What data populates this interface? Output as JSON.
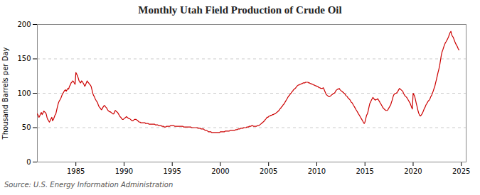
{
  "chart_data": {
    "type": "line",
    "title": "Monthly Utah Field Production of Crude Oil",
    "ylabel": "Thousand Barrels per Day",
    "annotations": [
      "Source: U.S. Energy Information Administration"
    ],
    "color": "#cc0000",
    "grid": true,
    "xlim": [
      1981.0,
      2025.5
    ],
    "xticks": [
      1985,
      1990,
      1995,
      2000,
      2005,
      2010,
      2015,
      2020,
      2025
    ],
    "ylim": [
      0,
      200
    ],
    "yticks": [
      0,
      50,
      100,
      150,
      200
    ],
    "x": [
      1981.0,
      1981.08,
      1981.17,
      1981.25,
      1981.33,
      1981.42,
      1981.5,
      1981.58,
      1981.67,
      1981.75,
      1981.83,
      1981.92,
      1982.0,
      1982.08,
      1982.17,
      1982.25,
      1982.33,
      1982.42,
      1982.5,
      1982.58,
      1982.67,
      1982.75,
      1982.83,
      1982.92,
      1983.0,
      1983.08,
      1983.17,
      1983.25,
      1983.33,
      1983.42,
      1983.5,
      1983.58,
      1983.67,
      1983.75,
      1983.83,
      1983.92,
      1984.0,
      1984.08,
      1984.17,
      1984.25,
      1984.33,
      1984.42,
      1984.5,
      1984.58,
      1984.67,
      1984.75,
      1984.83,
      1984.92,
      1985.0,
      1985.08,
      1985.17,
      1985.25,
      1985.33,
      1985.42,
      1985.5,
      1985.58,
      1985.67,
      1985.75,
      1985.83,
      1985.92,
      1986.0,
      1986.08,
      1986.17,
      1986.25,
      1986.33,
      1986.42,
      1986.5,
      1986.58,
      1986.67,
      1986.75,
      1986.83,
      1986.92,
      1987.0,
      1987.08,
      1987.17,
      1987.25,
      1987.33,
      1987.42,
      1987.5,
      1987.58,
      1987.67,
      1987.75,
      1987.83,
      1987.92,
      1988.0,
      1988.08,
      1988.17,
      1988.25,
      1988.33,
      1988.42,
      1988.5,
      1988.58,
      1988.67,
      1988.75,
      1988.83,
      1988.92,
      1989.0,
      1989.08,
      1989.17,
      1989.25,
      1989.33,
      1989.42,
      1989.5,
      1989.58,
      1989.67,
      1989.75,
      1989.83,
      1989.92,
      1990.0,
      1990.08,
      1990.17,
      1990.25,
      1990.33,
      1990.42,
      1990.5,
      1990.58,
      1990.67,
      1990.75,
      1990.83,
      1990.92,
      1991.0,
      1991.08,
      1991.17,
      1991.25,
      1991.33,
      1991.42,
      1991.5,
      1991.58,
      1991.67,
      1991.75,
      1991.83,
      1991.92,
      1992.0,
      1992.08,
      1992.17,
      1992.25,
      1992.33,
      1992.42,
      1992.5,
      1992.58,
      1992.67,
      1992.75,
      1992.83,
      1992.92,
      1993.0,
      1993.08,
      1993.17,
      1993.25,
      1993.33,
      1993.42,
      1993.5,
      1993.58,
      1993.67,
      1993.75,
      1993.83,
      1993.92,
      1994.0,
      1994.08,
      1994.17,
      1994.25,
      1994.33,
      1994.42,
      1994.5,
      1994.58,
      1994.67,
      1994.75,
      1994.83,
      1994.92,
      1995.0,
      1995.08,
      1995.17,
      1995.25,
      1995.33,
      1995.42,
      1995.5,
      1995.58,
      1995.67,
      1995.75,
      1995.83,
      1995.92,
      1996.0,
      1996.08,
      1996.17,
      1996.25,
      1996.33,
      1996.42,
      1996.5,
      1996.58,
      1996.67,
      1996.75,
      1996.83,
      1996.92,
      1997.0,
      1997.08,
      1997.17,
      1997.25,
      1997.33,
      1997.42,
      1997.5,
      1997.58,
      1997.67,
      1997.75,
      1997.83,
      1997.92,
      1998.0,
      1998.08,
      1998.17,
      1998.25,
      1998.33,
      1998.42,
      1998.5,
      1998.58,
      1998.67,
      1998.75,
      1998.83,
      1998.92,
      1999.0,
      1999.08,
      1999.17,
      1999.25,
      1999.33,
      1999.42,
      1999.5,
      1999.58,
      1999.67,
      1999.75,
      1999.83,
      1999.92,
      2000.0,
      2000.08,
      2000.17,
      2000.25,
      2000.33,
      2000.42,
      2000.5,
      2000.58,
      2000.67,
      2000.75,
      2000.83,
      2000.92,
      2001.0,
      2001.08,
      2001.17,
      2001.25,
      2001.33,
      2001.42,
      2001.5,
      2001.58,
      2001.67,
      2001.75,
      2001.83,
      2001.92,
      2002.0,
      2002.08,
      2002.17,
      2002.25,
      2002.33,
      2002.42,
      2002.5,
      2002.58,
      2002.67,
      2002.75,
      2002.83,
      2002.92,
      2003.0,
      2003.08,
      2003.17,
      2003.25,
      2003.33,
      2003.42,
      2003.5,
      2003.58,
      2003.67,
      2003.75,
      2003.83,
      2003.92,
      2004.0,
      2004.08,
      2004.17,
      2004.25,
      2004.33,
      2004.42,
      2004.5,
      2004.58,
      2004.67,
      2004.75,
      2004.83,
      2004.92,
      2005.0,
      2005.08,
      2005.17,
      2005.25,
      2005.33,
      2005.42,
      2005.5,
      2005.58,
      2005.67,
      2005.75,
      2005.83,
      2005.92,
      2006.0,
      2006.08,
      2006.17,
      2006.25,
      2006.33,
      2006.42,
      2006.5,
      2006.58,
      2006.67,
      2006.75,
      2006.83,
      2006.92,
      2007.0,
      2007.08,
      2007.17,
      2007.25,
      2007.33,
      2007.42,
      2007.5,
      2007.58,
      2007.67,
      2007.75,
      2007.83,
      2007.92,
      2008.0,
      2008.08,
      2008.17,
      2008.25,
      2008.33,
      2008.42,
      2008.5,
      2008.58,
      2008.67,
      2008.75,
      2008.83,
      2008.92,
      2009.0,
      2009.08,
      2009.17,
      2009.25,
      2009.33,
      2009.42,
      2009.5,
      2009.58,
      2009.67,
      2009.75,
      2009.83,
      2009.92,
      2010.0,
      2010.08,
      2010.17,
      2010.25,
      2010.33,
      2010.42,
      2010.5,
      2010.58,
      2010.67,
      2010.75,
      2010.83,
      2010.92,
      2011.0,
      2011.08,
      2011.17,
      2011.25,
      2011.33,
      2011.42,
      2011.5,
      2011.58,
      2011.67,
      2011.75,
      2011.83,
      2011.92,
      2012.0,
      2012.08,
      2012.17,
      2012.25,
      2012.33,
      2012.42,
      2012.5,
      2012.58,
      2012.67,
      2012.75,
      2012.83,
      2012.92,
      2013.0,
      2013.08,
      2013.17,
      2013.25,
      2013.33,
      2013.42,
      2013.5,
      2013.58,
      2013.67,
      2013.75,
      2013.83,
      2013.92,
      2014.0,
      2014.08,
      2014.17,
      2014.25,
      2014.33,
      2014.42,
      2014.5,
      2014.58,
      2014.67,
      2014.75,
      2014.83,
      2014.92,
      2015.0,
      2015.08,
      2015.17,
      2015.25,
      2015.33,
      2015.42,
      2015.5,
      2015.58,
      2015.67,
      2015.75,
      2015.83,
      2015.92,
      2016.0,
      2016.08,
      2016.17,
      2016.25,
      2016.33,
      2016.42,
      2016.5,
      2016.58,
      2016.67,
      2016.75,
      2016.83,
      2016.92,
      2017.0,
      2017.08,
      2017.17,
      2017.25,
      2017.33,
      2017.42,
      2017.5,
      2017.58,
      2017.67,
      2017.75,
      2017.83,
      2017.92,
      2018.0,
      2018.08,
      2018.17,
      2018.25,
      2018.33,
      2018.42,
      2018.5,
      2018.58,
      2018.67,
      2018.75,
      2018.83,
      2018.92,
      2019.0,
      2019.08,
      2019.17,
      2019.25,
      2019.33,
      2019.42,
      2019.5,
      2019.58,
      2019.67,
      2019.75,
      2019.83,
      2019.92,
      2020.0,
      2020.08,
      2020.17,
      2020.25,
      2020.33,
      2020.42,
      2020.5,
      2020.58,
      2020.67,
      2020.75,
      2020.83,
      2020.92,
      2021.0,
      2021.08,
      2021.17,
      2021.25,
      2021.33,
      2021.42,
      2021.5,
      2021.58,
      2021.67,
      2021.75,
      2021.83,
      2021.92,
      2022.0,
      2022.08,
      2022.17,
      2022.25,
      2022.33,
      2022.42,
      2022.5,
      2022.58,
      2022.67,
      2022.75,
      2022.83,
      2022.92,
      2023.0,
      2023.08,
      2023.17,
      2023.25,
      2023.33,
      2023.42,
      2023.5,
      2023.58,
      2023.67,
      2023.75,
      2023.83,
      2023.92,
      2024.0,
      2024.08,
      2024.17,
      2024.25,
      2024.33,
      2024.42,
      2024.5,
      2024.58,
      2024.67,
      2024.75
    ],
    "values": [
      70,
      68,
      65,
      67,
      70,
      72,
      69,
      71,
      74,
      73,
      72,
      70,
      65,
      62,
      60,
      58,
      60,
      63,
      65,
      60,
      62,
      65,
      68,
      70,
      75,
      80,
      85,
      88,
      90,
      92,
      95,
      98,
      100,
      102,
      104,
      105,
      103,
      105,
      107,
      106,
      110,
      112,
      115,
      116,
      118,
      117,
      115,
      113,
      130,
      128,
      125,
      122,
      118,
      116,
      115,
      118,
      117,
      115,
      113,
      110,
      112,
      115,
      118,
      116,
      115,
      113,
      112,
      110,
      105,
      100,
      97,
      95,
      92,
      90,
      88,
      86,
      83,
      80,
      79,
      77,
      76,
      78,
      80,
      82,
      82,
      80,
      79,
      77,
      75,
      74,
      73,
      73,
      72,
      71,
      70,
      70,
      72,
      75,
      74,
      73,
      72,
      70,
      68,
      66,
      65,
      63,
      62,
      62,
      63,
      64,
      65,
      66,
      65,
      64,
      63,
      63,
      62,
      61,
      60,
      60,
      61,
      62,
      62,
      62,
      61,
      60,
      59,
      58,
      58,
      57,
      57,
      57,
      57,
      57,
      57,
      56,
      56,
      56,
      56,
      55,
      55,
      55,
      55,
      55,
      55,
      55,
      55,
      54,
      54,
      54,
      54,
      53,
      53,
      53,
      53,
      52,
      52,
      52,
      51,
      51,
      51,
      52,
      52,
      52,
      52,
      52,
      53,
      53,
      53,
      53,
      53,
      52,
      52,
      52,
      52,
      52,
      52,
      52,
      52,
      52,
      52,
      52,
      51,
      51,
      51,
      51,
      51,
      51,
      51,
      51,
      51,
      51,
      50,
      50,
      50,
      50,
      50,
      50,
      50,
      50,
      49,
      49,
      49,
      49,
      48,
      48,
      48,
      48,
      47,
      46,
      46,
      46,
      45,
      44,
      44,
      44,
      44,
      43,
      43,
      43,
      43,
      43,
      43,
      43,
      43,
      43,
      43,
      43,
      44,
      44,
      44,
      44,
      44,
      44,
      45,
      45,
      45,
      45,
      45,
      45,
      46,
      46,
      46,
      46,
      46,
      46,
      46,
      47,
      47,
      47,
      48,
      48,
      48,
      49,
      49,
      49,
      49,
      50,
      50,
      50,
      50,
      51,
      51,
      51,
      52,
      52,
      52,
      53,
      53,
      52,
      52,
      52,
      52,
      52,
      53,
      53,
      53,
      54,
      55,
      56,
      57,
      58,
      59,
      60,
      62,
      63,
      65,
      65,
      66,
      67,
      67,
      68,
      68,
      69,
      69,
      70,
      70,
      71,
      72,
      73,
      74,
      75,
      77,
      78,
      80,
      81,
      83,
      84,
      86,
      88,
      90,
      92,
      94,
      96,
      97,
      99,
      100,
      102,
      103,
      105,
      106,
      107,
      108,
      110,
      111,
      112,
      112,
      113,
      113,
      114,
      114,
      115,
      115,
      115,
      116,
      116,
      116,
      116,
      115,
      115,
      114,
      114,
      113,
      113,
      112,
      112,
      111,
      111,
      110,
      110,
      109,
      108,
      108,
      107,
      107,
      107,
      108,
      106,
      103,
      100,
      98,
      97,
      96,
      95,
      95,
      96,
      97,
      98,
      99,
      100,
      100,
      102,
      104,
      105,
      106,
      106,
      107,
      105,
      104,
      103,
      102,
      101,
      100,
      99,
      97,
      96,
      95,
      93,
      92,
      91,
      89,
      87,
      86,
      84,
      82,
      80,
      78,
      76,
      74,
      72,
      70,
      68,
      66,
      64,
      62,
      60,
      58,
      56,
      58,
      63,
      68,
      70,
      74,
      80,
      85,
      87,
      90,
      92,
      94,
      92,
      91,
      90,
      91,
      91,
      92,
      90,
      88,
      86,
      84,
      82,
      80,
      78,
      77,
      76,
      75,
      75,
      75,
      77,
      79,
      81,
      83,
      87,
      90,
      95,
      98,
      99,
      100,
      100,
      101,
      103,
      105,
      107,
      106,
      105,
      104,
      103,
      100,
      98,
      96,
      95,
      94,
      92,
      90,
      88,
      86,
      83,
      80,
      77,
      100,
      98,
      95,
      90,
      85,
      80,
      75,
      71,
      68,
      67,
      68,
      70,
      72,
      75,
      78,
      80,
      83,
      85,
      87,
      89,
      90,
      92,
      95,
      97,
      100,
      103,
      107,
      110,
      115,
      120,
      125,
      130,
      135,
      140,
      147,
      155,
      160,
      163,
      167,
      170,
      173,
      175,
      177,
      179,
      182,
      185,
      188,
      190,
      185,
      183,
      181,
      178,
      175,
      172,
      170,
      168,
      165,
      163
    ]
  }
}
